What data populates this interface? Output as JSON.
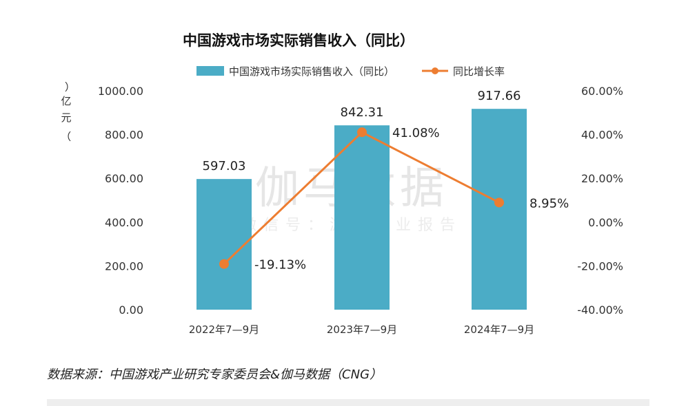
{
  "chart_data": {
    "type": "bar",
    "title": "中国游戏市场实际销售收入（同比）",
    "y_unit": "（亿元）",
    "categories": [
      "2022年7—9月",
      "2023年7—9月",
      "2024年7—9月"
    ],
    "series": [
      {
        "name": "中国游戏市场实际销售收入（同比）",
        "type": "bar",
        "axis": "left",
        "values": [
          597.03,
          842.31,
          917.66
        ],
        "labels": [
          "597.03",
          "842.31",
          "917.66"
        ],
        "color": "#4bacc6"
      },
      {
        "name": "同比增长率",
        "type": "line",
        "axis": "right",
        "values": [
          -19.13,
          41.08,
          8.95
        ],
        "labels": [
          "-19.13%",
          "41.08%",
          "8.95%"
        ],
        "color": "#ed7d31"
      }
    ],
    "ylim": [
      0,
      1000
    ],
    "y_ticks": [
      "0.00",
      "200.00",
      "400.00",
      "600.00",
      "800.00",
      "1000.00"
    ],
    "y2lim": [
      -40,
      60
    ],
    "y2_ticks": [
      "-40.00%",
      "-20.00%",
      "0.00%",
      "20.00%",
      "40.00%",
      "60.00%"
    ],
    "grid": false,
    "legend_position": "top"
  },
  "watermark": {
    "main": "伽马数据",
    "sub": "微信号：游戏产业报告"
  },
  "source": "数据来源：中国游戏产业研究专家委员会&伽马数据（CNG）"
}
